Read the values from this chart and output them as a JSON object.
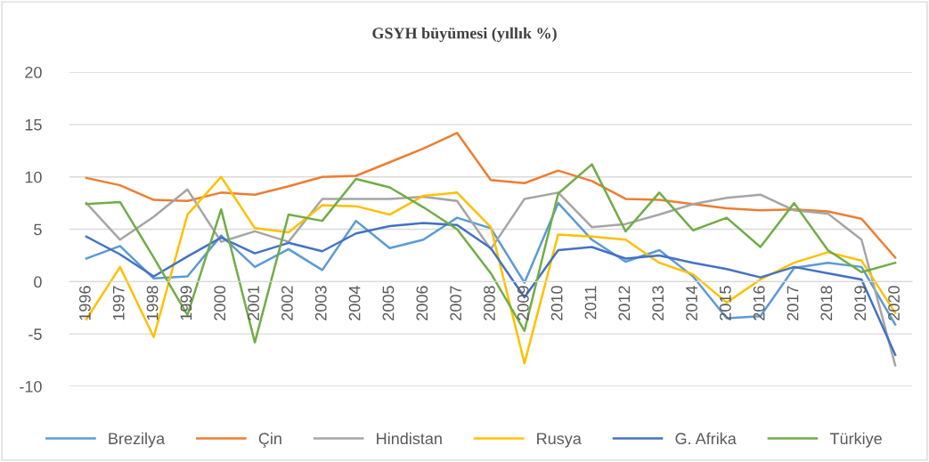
{
  "chart_data": {
    "type": "line",
    "title": "GSYH büyümesi (yıllık %)",
    "categories": [
      "1996",
      "1997",
      "1998",
      "1999",
      "2000",
      "2001",
      "2002",
      "2003",
      "2004",
      "2005",
      "2006",
      "2007",
      "2008",
      "2009",
      "2010",
      "2011",
      "2012",
      "2013",
      "2014",
      "2015",
      "2016",
      "2017",
      "2018",
      "2019",
      "2020"
    ],
    "series": [
      {
        "name": "Brezilya",
        "color": "#5b9bd5",
        "values": [
          2.2,
          3.4,
          0.3,
          0.5,
          4.4,
          1.4,
          3.1,
          1.1,
          5.8,
          3.2,
          4.0,
          6.1,
          5.1,
          -0.1,
          7.5,
          4.0,
          1.9,
          3.0,
          0.5,
          -3.5,
          -3.3,
          1.3,
          1.8,
          1.4,
          -4.1
        ]
      },
      {
        "name": "Çin",
        "color": "#ed7d31",
        "values": [
          9.9,
          9.2,
          7.8,
          7.7,
          8.5,
          8.3,
          9.1,
          10.0,
          10.1,
          11.4,
          12.7,
          14.2,
          9.7,
          9.4,
          10.6,
          9.6,
          7.9,
          7.8,
          7.4,
          7.0,
          6.8,
          6.9,
          6.7,
          6.0,
          2.3
        ]
      },
      {
        "name": "Hindistan",
        "color": "#a5a5a5",
        "values": [
          7.5,
          4.0,
          6.2,
          8.8,
          3.8,
          4.8,
          3.8,
          7.9,
          7.9,
          7.9,
          8.1,
          7.7,
          3.1,
          7.9,
          8.5,
          5.2,
          5.5,
          6.4,
          7.4,
          8.0,
          8.3,
          6.8,
          6.5,
          4.0,
          -8.0
        ]
      },
      {
        "name": "Rusya",
        "color": "#ffc000",
        "values": [
          -3.6,
          1.4,
          -5.3,
          6.4,
          10.0,
          5.1,
          4.7,
          7.3,
          7.2,
          6.4,
          8.2,
          8.5,
          5.2,
          -7.8,
          4.5,
          4.3,
          4.0,
          1.8,
          0.7,
          -2.0,
          0.2,
          1.8,
          2.8,
          2.0,
          -3.0
        ]
      },
      {
        "name": "G. Afrika",
        "color": "#4472c4",
        "values": [
          4.3,
          2.6,
          0.5,
          2.4,
          4.2,
          2.7,
          3.7,
          2.9,
          4.6,
          5.3,
          5.6,
          5.4,
          3.2,
          -1.5,
          3.0,
          3.3,
          2.2,
          2.5,
          1.8,
          1.2,
          0.4,
          1.4,
          0.8,
          0.2,
          -7.0
        ]
      },
      {
        "name": "Türkiye",
        "color": "#70ad47",
        "values": [
          7.4,
          7.6,
          2.3,
          -3.2,
          6.9,
          -5.8,
          6.4,
          5.8,
          9.8,
          9.0,
          7.1,
          5.0,
          0.8,
          -4.7,
          8.4,
          11.2,
          4.8,
          8.5,
          4.9,
          6.1,
          3.3,
          7.5,
          3.0,
          0.9,
          1.8
        ]
      }
    ],
    "ylim": [
      -10,
      20
    ],
    "yticks": [
      -10,
      -5,
      0,
      5,
      10,
      15,
      20
    ],
    "grid": "y",
    "legend": "bottom",
    "marker": "none",
    "line_style": "solid"
  }
}
